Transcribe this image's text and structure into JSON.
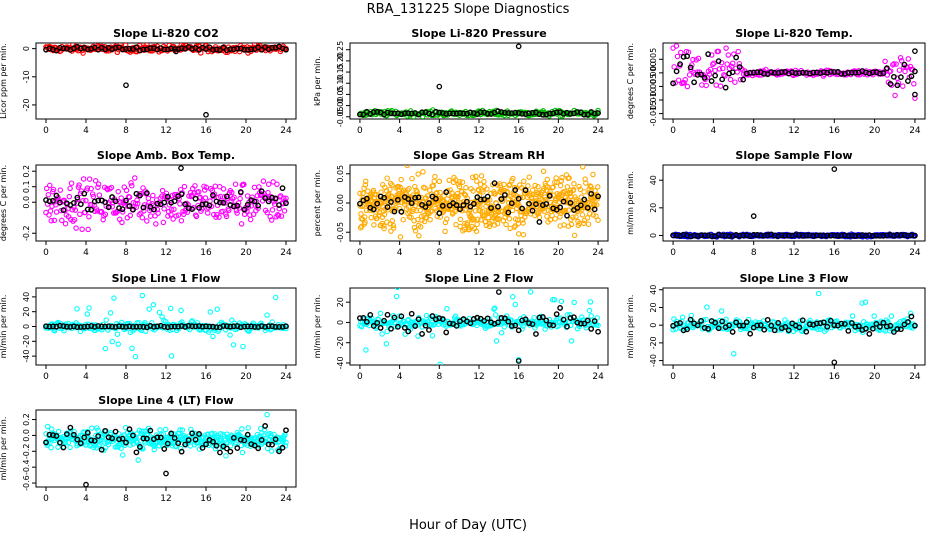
{
  "figure": {
    "title": "RBA_131225  Slope Diagnostics",
    "xlabel": "Hour of Day (UTC)"
  },
  "chart_data": [
    {
      "type": "scatter",
      "title": "Slope Li-820 CO2",
      "ylabel": "Licor ppm per min.",
      "xlim": [
        -1,
        25
      ],
      "ylim": [
        -25,
        2
      ],
      "xticks": [
        0,
        4,
        8,
        12,
        16,
        20,
        24
      ],
      "yticks": [
        0,
        -10,
        -20
      ],
      "ytick_labels": [
        "0",
        "-10",
        "-20"
      ],
      "series": [
        {
          "name": "raw",
          "color": "#ff0000",
          "base": 0,
          "spread": 0.6,
          "count": 260
        },
        {
          "name": "mean",
          "color": "#000000",
          "base": 0,
          "spread": 0.3,
          "count": 70
        }
      ],
      "outliers": [
        {
          "x": 8,
          "y": -13
        },
        {
          "x": 16,
          "y": -23.5
        },
        {
          "x": 13,
          "y": -1
        }
      ]
    },
    {
      "type": "scatter",
      "title": "Slope Li-820 Pressure",
      "ylabel": "kPa per min.",
      "xlim": [
        -1,
        25
      ],
      "ylim": [
        -0.06,
        0.28
      ],
      "xticks": [
        0,
        4,
        8,
        12,
        16,
        20,
        24
      ],
      "yticks": [
        -0.05,
        0,
        0.05,
        0.1,
        0.15,
        0.2,
        0.25
      ],
      "ytick_labels": [
        "-0.05",
        "0.00",
        "0.05",
        "0.10",
        "0.15",
        "0.20",
        "0.25"
      ],
      "series": [
        {
          "name": "raw",
          "color": "#00bb00",
          "base": -0.035,
          "spread": 0.006,
          "count": 240
        },
        {
          "name": "mean",
          "color": "#000000",
          "base": -0.035,
          "spread": 0.004,
          "count": 70
        }
      ],
      "outliers": [
        {
          "x": 8,
          "y": 0.085
        },
        {
          "x": 16,
          "y": 0.265
        }
      ]
    },
    {
      "type": "scatter",
      "title": "Slope Li-820 Temp.",
      "ylabel": "degrees C per min.",
      "xlim": [
        -1,
        25
      ],
      "ylim": [
        -0.017,
        0.011
      ],
      "xticks": [
        0,
        4,
        8,
        12,
        16,
        20,
        24
      ],
      "yticks": [
        -0.015,
        -0.01,
        -0.005,
        0,
        0.005
      ],
      "ytick_labels": [
        "-0.015",
        "-0.010",
        "-0.005",
        "0.000",
        "0.005"
      ],
      "series": [
        {
          "name": "raw",
          "color": "#ff00ff",
          "base": 0,
          "spread": 0.0005,
          "count": 220,
          "noisy_ranges": [
            [
              0,
              7,
              0.005
            ],
            [
              21,
              24,
              0.004
            ]
          ]
        },
        {
          "name": "mean",
          "color": "#000000",
          "base": 0,
          "spread": 0.0003,
          "count": 70,
          "noisy_ranges": [
            [
              0,
              7,
              0.003
            ],
            [
              21,
              24,
              0.003
            ]
          ]
        }
      ],
      "outliers": [
        {
          "x": 24,
          "y": 0.008
        },
        {
          "x": 24,
          "y": -0.008
        }
      ]
    },
    {
      "type": "scatter",
      "title": "Slope Amb. Box Temp.",
      "ylabel": "degrees C per min.",
      "xlim": [
        -1,
        25
      ],
      "ylim": [
        -0.25,
        0.24
      ],
      "xticks": [
        0,
        4,
        8,
        12,
        16,
        20,
        24
      ],
      "yticks": [
        -0.2,
        0,
        0.1,
        0.2
      ],
      "ytick_labels": [
        "-0.2",
        "0.0",
        "0.1",
        "0.2"
      ],
      "series": [
        {
          "name": "raw",
          "color": "#ff00ff",
          "base": 0,
          "spread": 0.07,
          "count": 320
        },
        {
          "name": "mean",
          "color": "#000000",
          "base": 0,
          "spread": 0.035,
          "count": 70
        }
      ],
      "outliers": [
        {
          "x": 13.5,
          "y": 0.22
        }
      ]
    },
    {
      "type": "scatter",
      "title": "Slope Gas Stream RH",
      "ylabel": "percent per min.",
      "xlim": [
        -1,
        25
      ],
      "ylim": [
        -0.065,
        0.065
      ],
      "xticks": [
        0,
        4,
        8,
        12,
        16,
        20,
        24
      ],
      "yticks": [
        -0.05,
        0,
        0.05
      ],
      "ytick_labels": [
        "-0.05",
        "0.00",
        "0.05"
      ],
      "series": [
        {
          "name": "raw",
          "color": "#ffaa00",
          "base": 0,
          "spread": 0.022,
          "count": 700
        },
        {
          "name": "mean",
          "color": "#000000",
          "base": 0,
          "spread": 0.012,
          "count": 70
        }
      ],
      "outliers": []
    },
    {
      "type": "scatter",
      "title": "Slope Sample Flow",
      "ylabel": "ml/min per min.",
      "xlim": [
        -1,
        25
      ],
      "ylim": [
        -4,
        51
      ],
      "xticks": [
        0,
        4,
        8,
        12,
        16,
        20,
        24
      ],
      "yticks": [
        0,
        20,
        40
      ],
      "ytick_labels": [
        "0",
        "20",
        "40"
      ],
      "series": [
        {
          "name": "raw",
          "color": "#0000ff",
          "base": 0,
          "spread": 0.5,
          "count": 260
        },
        {
          "name": "mean",
          "color": "#000000",
          "base": 0,
          "spread": 0.3,
          "count": 70
        }
      ],
      "outliers": [
        {
          "x": 8,
          "y": 14
        },
        {
          "x": 16,
          "y": 48
        }
      ]
    },
    {
      "type": "scatter",
      "title": "Slope Line 1 Flow",
      "ylabel": "ml/min per min.",
      "xlim": [
        -1,
        25
      ],
      "ylim": [
        -52,
        52
      ],
      "xticks": [
        0,
        4,
        8,
        12,
        16,
        20,
        24
      ],
      "yticks": [
        -40,
        -20,
        0,
        20,
        40
      ],
      "ytick_labels": [
        "-40",
        "-20",
        "0",
        "20",
        "40"
      ],
      "series": [
        {
          "name": "raw",
          "color": "#00ffff",
          "base": 0,
          "spread": 3,
          "count": 280,
          "wild": 0.12,
          "wild_spread": 25
        },
        {
          "name": "mean",
          "color": "#000000",
          "base": 0,
          "spread": 0.5,
          "count": 70
        }
      ],
      "outliers": []
    },
    {
      "type": "scatter",
      "title": "Slope Line 2 Flow",
      "ylabel": "ml/min per min.",
      "xlim": [
        -1,
        25
      ],
      "ylim": [
        -42,
        34
      ],
      "xticks": [
        0,
        4,
        8,
        12,
        16,
        20,
        24
      ],
      "yticks": [
        -40,
        -20,
        0,
        20
      ],
      "ytick_labels": [
        "-40",
        "-20",
        "0",
        "20"
      ],
      "series": [
        {
          "name": "raw",
          "color": "#00ffff",
          "base": 0,
          "spread": 3,
          "count": 280,
          "wild": 0.12,
          "wild_spread": 18
        },
        {
          "name": "mean",
          "color": "#000000",
          "base": 0,
          "spread": 5,
          "count": 70
        }
      ],
      "outliers": [
        {
          "x": 14,
          "y": 30
        },
        {
          "x": 16,
          "y": -38
        }
      ]
    },
    {
      "type": "scatter",
      "title": "Slope Line 3 Flow",
      "ylabel": "ml/min per min.",
      "xlim": [
        -1,
        25
      ],
      "ylim": [
        -45,
        42
      ],
      "xticks": [
        0,
        4,
        8,
        12,
        16,
        20,
        24
      ],
      "yticks": [
        -40,
        -20,
        0,
        20,
        40
      ],
      "ytick_labels": [
        "-40",
        "-20",
        "0",
        "20",
        "40"
      ],
      "series": [
        {
          "name": "raw",
          "color": "#00ffff",
          "base": 0,
          "spread": 3,
          "count": 280,
          "wild": 0.12,
          "wild_spread": 18
        },
        {
          "name": "mean",
          "color": "#000000",
          "base": 0,
          "spread": 5,
          "count": 70
        }
      ],
      "outliers": [
        {
          "x": 16,
          "y": -42
        }
      ]
    },
    {
      "type": "scatter",
      "title": "Slope Line 4 (LT) Flow",
      "ylabel": "ml/min per min.",
      "xlim": [
        -1,
        25
      ],
      "ylim": [
        -0.65,
        0.32
      ],
      "xticks": [
        0,
        4,
        8,
        12,
        16,
        20,
        24
      ],
      "yticks": [
        -0.6,
        -0.4,
        -0.2,
        0,
        0.2
      ],
      "ytick_labels": [
        "-0.6",
        "-0.4",
        "-0.2",
        "0.0",
        "0.2"
      ],
      "series": [
        {
          "name": "raw",
          "color": "#00ffff",
          "base": -0.05,
          "spread": 0.06,
          "count": 420,
          "wild": 0.06,
          "wild_spread": 0.15
        },
        {
          "name": "mean",
          "color": "#000000",
          "base": -0.05,
          "spread": 0.07,
          "count": 70
        }
      ],
      "outliers": [
        {
          "x": 4,
          "y": -0.62
        },
        {
          "x": 12,
          "y": -0.48
        }
      ]
    }
  ]
}
